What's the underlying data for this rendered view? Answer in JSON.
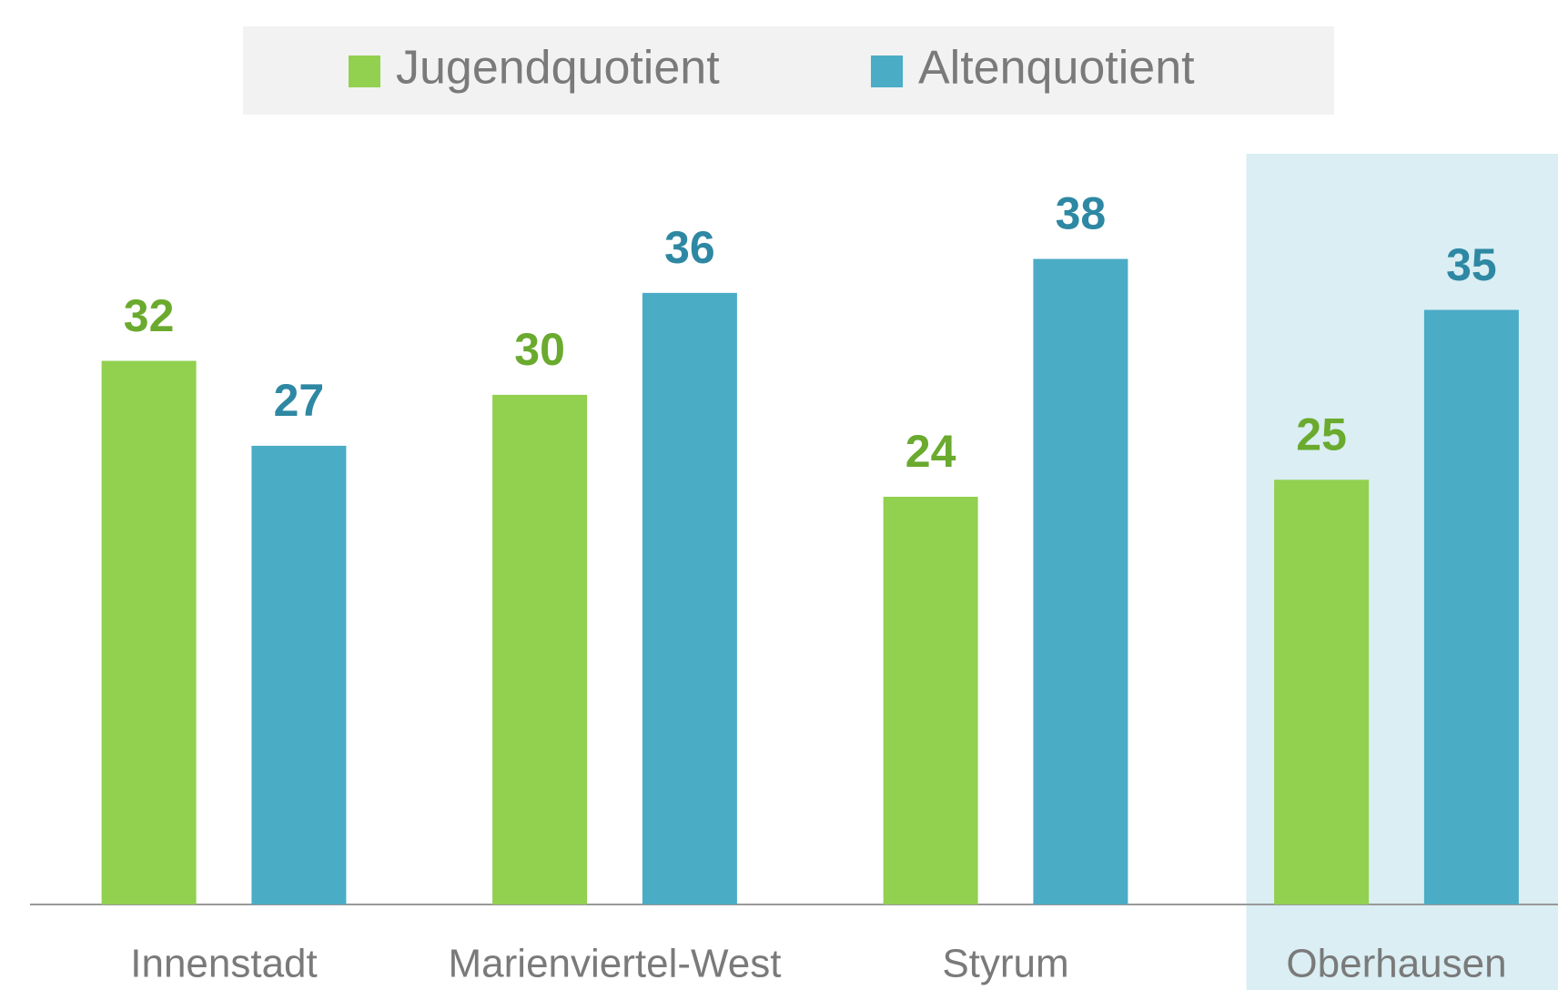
{
  "chart_data": {
    "type": "bar",
    "categories": [
      "Innenstadt",
      "Marienviertel-West",
      "Styrum",
      "Oberhausen"
    ],
    "series": [
      {
        "name": "Jugendquotient",
        "color": "#92d050",
        "label_color": "#6aaa2e",
        "values": [
          32,
          30,
          24,
          25
        ]
      },
      {
        "name": "Altenquotient",
        "color": "#4bacc6",
        "label_color": "#2e88a3",
        "values": [
          27,
          36,
          38,
          35
        ]
      }
    ],
    "highlight": "Oberhausen",
    "highlight_color": "#daeef3"
  }
}
